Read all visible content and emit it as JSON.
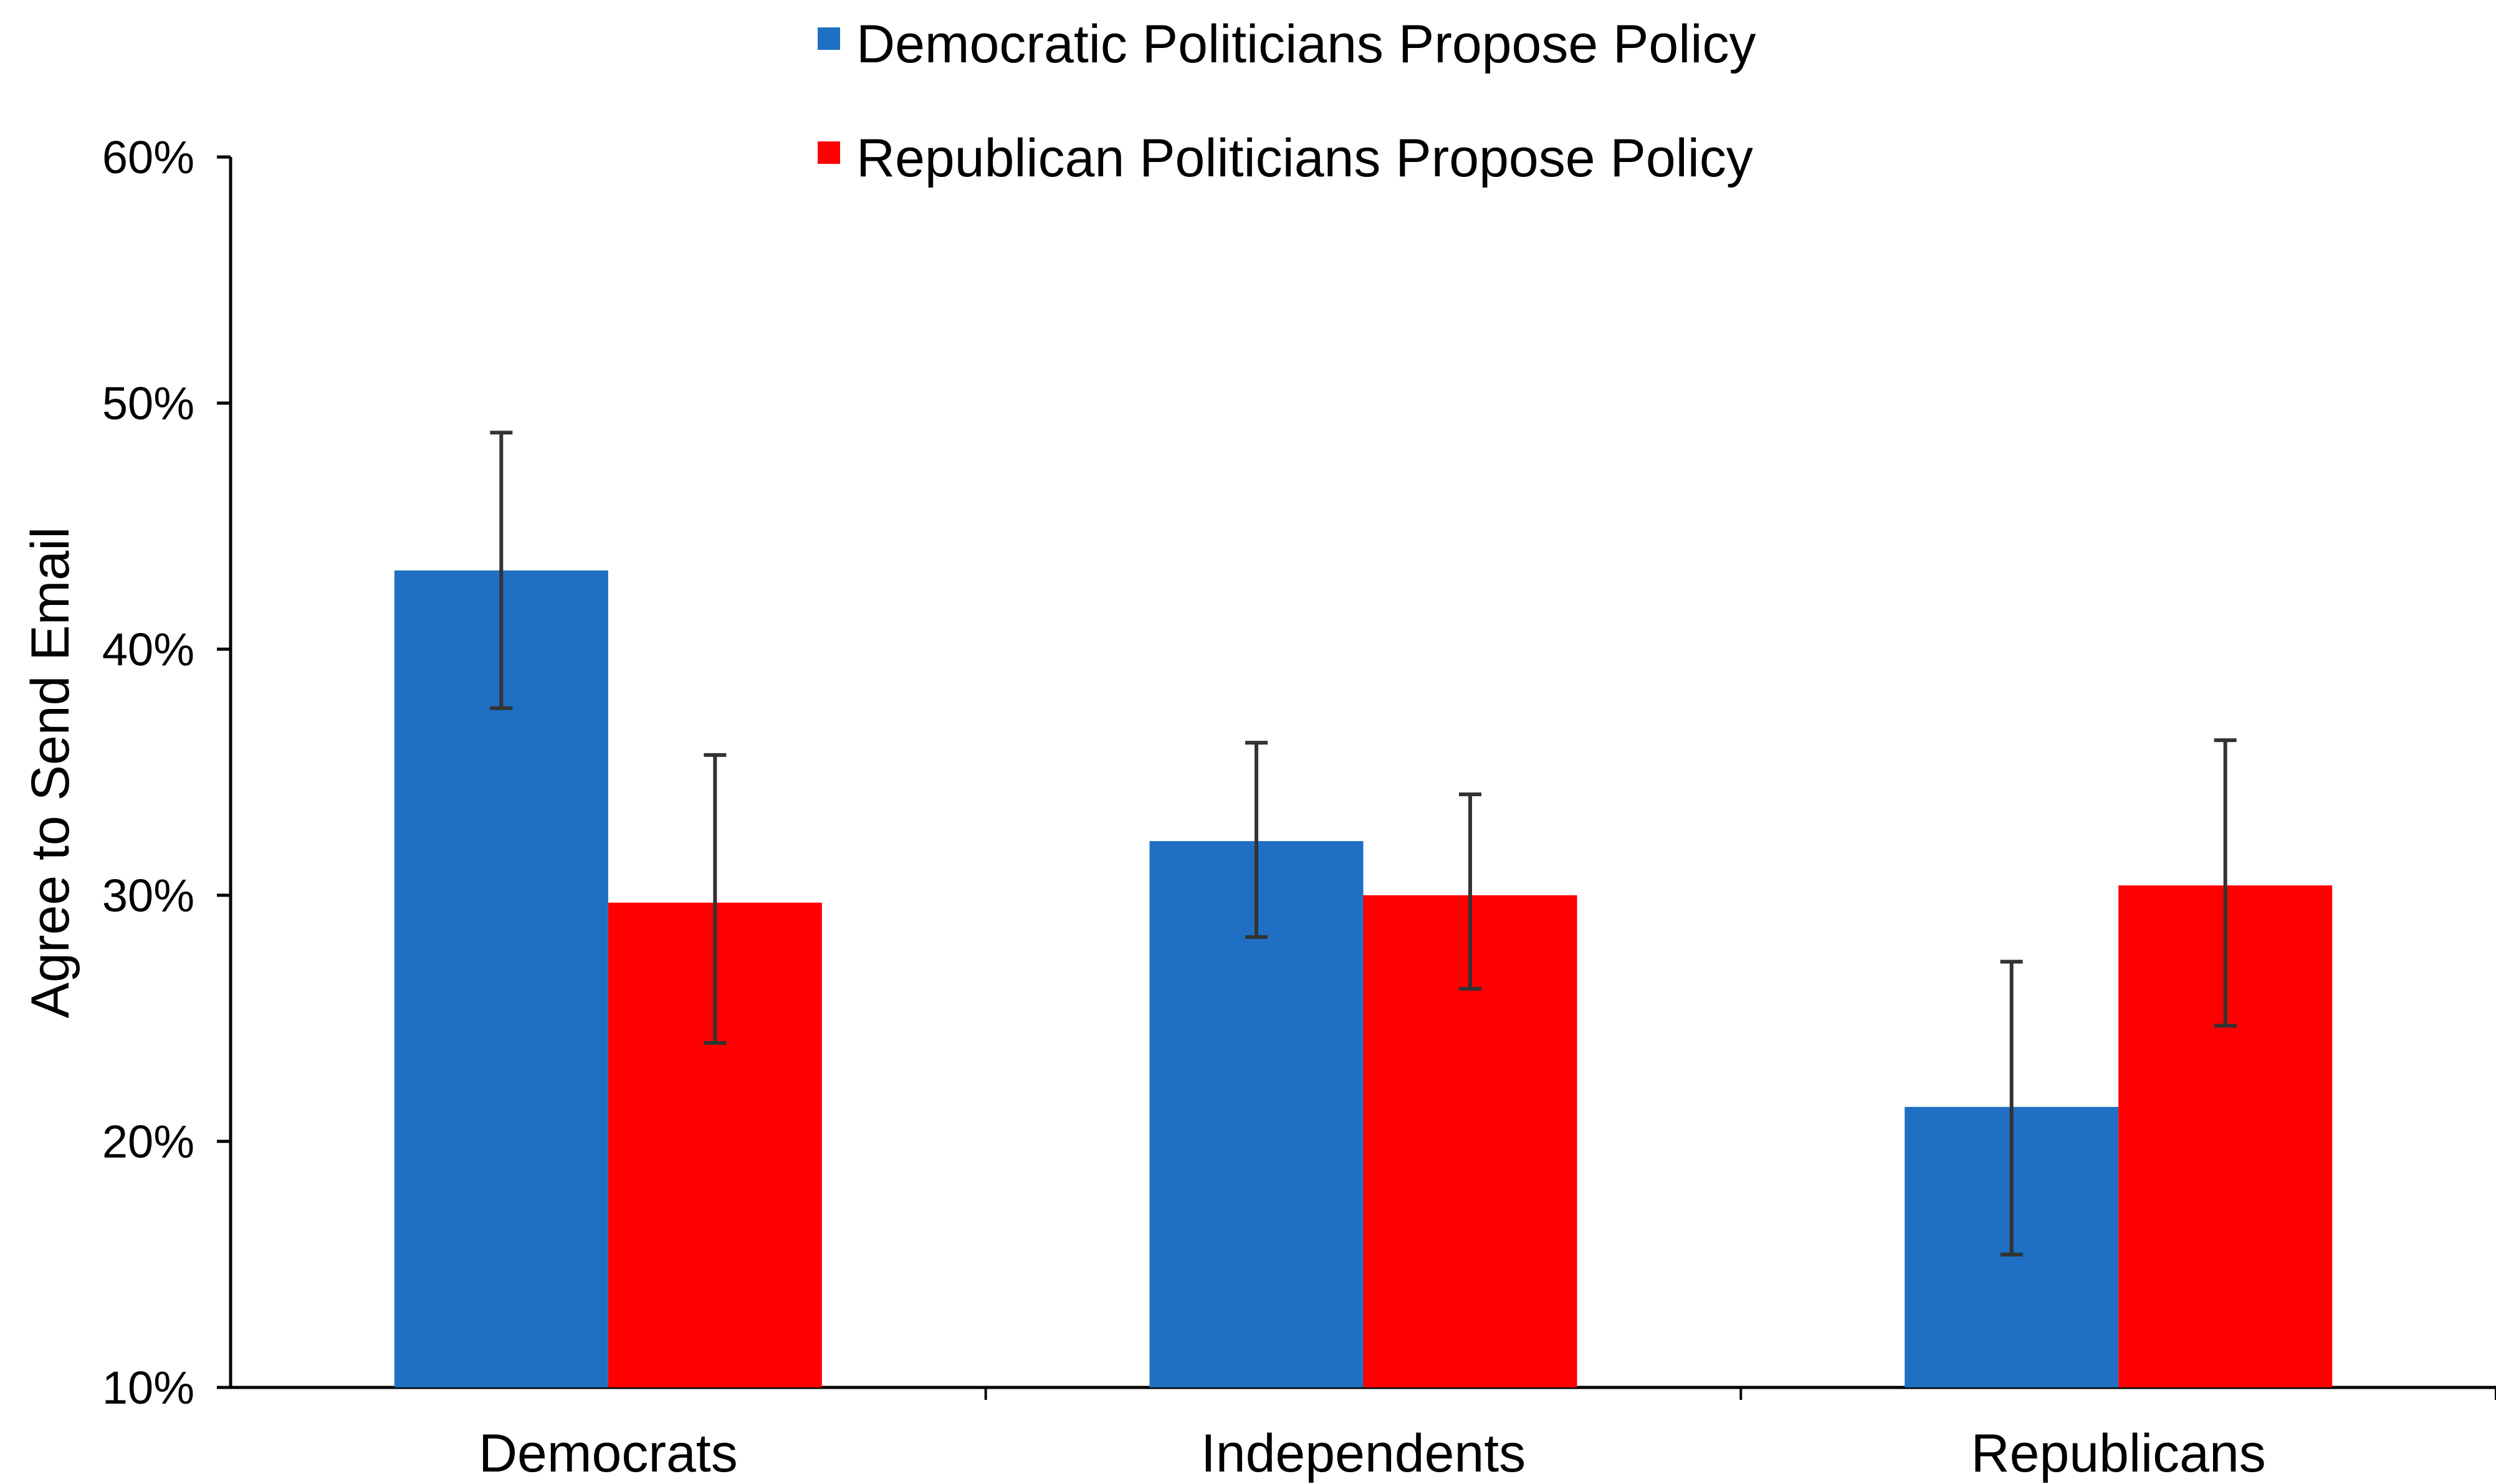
{
  "chart_data": {
    "type": "bar",
    "title": "",
    "xlabel": "",
    "ylabel": "Agree to Send Email",
    "categories": [
      "Democrats",
      "Independents",
      "Republicans"
    ],
    "ylim": [
      0.1,
      0.6
    ],
    "yticks": [
      0.1,
      0.2,
      0.3,
      0.4,
      0.5,
      0.6
    ],
    "ytick_labels": [
      "10%",
      "20%",
      "30%",
      "40%",
      "50%",
      "60%"
    ],
    "grid": false,
    "legend_position": "top-center",
    "series": [
      {
        "name": "Democratic Politicians Propose Policy",
        "color": "#1f6fc2",
        "values": [
          0.432,
          0.322,
          0.214
        ],
        "error_low": [
          0.376,
          0.283,
          0.154
        ],
        "error_high": [
          0.488,
          0.362,
          0.273
        ]
      },
      {
        "name": "Republican Politicians Propose Policy",
        "color": "#ff0000",
        "values": [
          0.297,
          0.3,
          0.304
        ],
        "error_low": [
          0.24,
          0.262,
          0.247
        ],
        "error_high": [
          0.357,
          0.341,
          0.363
        ]
      }
    ]
  }
}
